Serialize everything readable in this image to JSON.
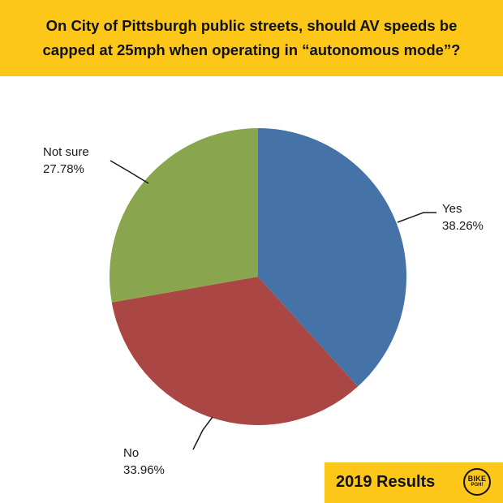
{
  "header": {
    "title_line1": "On City of Pittsburgh public streets, should AV speeds be",
    "title_line2": "capped at 25mph when operating in “autonomous mode”?"
  },
  "footer": {
    "results_label": "2019 Results",
    "logo_text_main": "BIKE",
    "logo_text_sub": "PGH!"
  },
  "colors": {
    "banner": "#fcc719",
    "yes": "#4572a7",
    "no": "#aa4643",
    "not_sure": "#89a54e"
  },
  "chart_data": {
    "type": "pie",
    "title": "On City of Pittsburgh public streets, should AV speeds be capped at 25mph when operating in “autonomous mode”?",
    "slices": [
      {
        "name": "Yes",
        "value": 38.26,
        "label": "38.26%",
        "color": "#4572a7"
      },
      {
        "name": "No",
        "value": 33.96,
        "label": "33.96%",
        "color": "#aa4643"
      },
      {
        "name": "Not sure",
        "value": 27.78,
        "label": "27.78%",
        "color": "#89a54e"
      }
    ],
    "start_angle_deg": 0,
    "direction": "clockwise"
  }
}
